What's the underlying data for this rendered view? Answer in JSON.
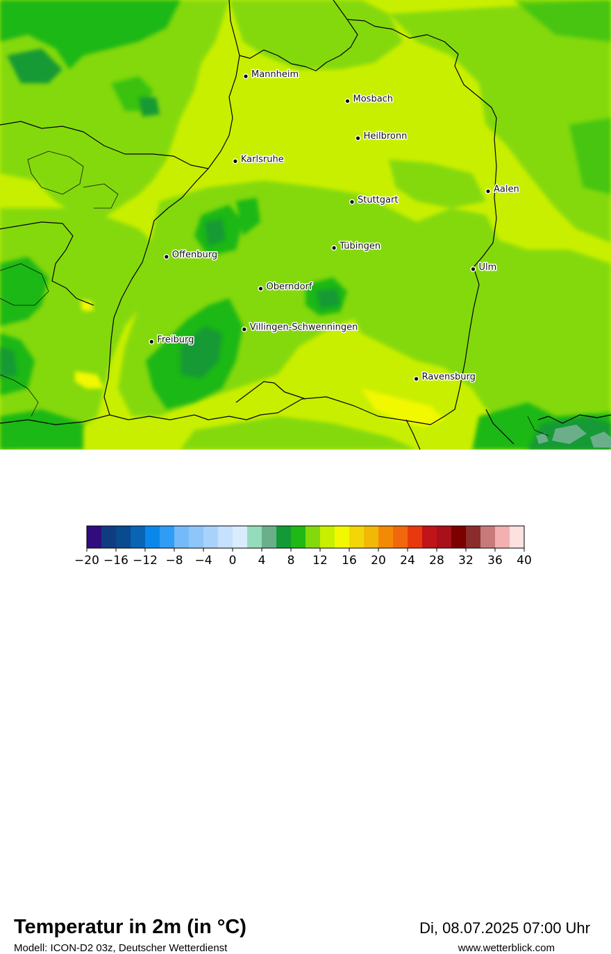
{
  "map": {
    "cities": [
      {
        "name": "Mannheim",
        "lon": 8.47,
        "lat": 49.49
      },
      {
        "name": "Mosbach",
        "lon": 9.15,
        "lat": 49.35
      },
      {
        "name": "Heilbronn",
        "lon": 9.22,
        "lat": 49.14
      },
      {
        "name": "Karlsruhe",
        "lon": 8.4,
        "lat": 49.01
      },
      {
        "name": "Aalen",
        "lon": 10.09,
        "lat": 48.84
      },
      {
        "name": "Stuttgart",
        "lon": 9.18,
        "lat": 48.78
      },
      {
        "name": "Tübingen",
        "lon": 9.06,
        "lat": 48.52
      },
      {
        "name": "Offenburg",
        "lon": 7.94,
        "lat": 48.47
      },
      {
        "name": "Ulm",
        "lon": 9.99,
        "lat": 48.4
      },
      {
        "name": "Oberndorf",
        "lon": 8.57,
        "lat": 48.29
      },
      {
        "name": "Villingen-Schwenningen",
        "lon": 8.46,
        "lat": 48.06
      },
      {
        "name": "Freiburg",
        "lon": 7.84,
        "lat": 47.99
      },
      {
        "name": "Ravensburg",
        "lon": 9.61,
        "lat": 47.78
      }
    ]
  },
  "header": {
    "title": "Temperatur in 2m (in °C)",
    "subtitle": "Modell: ICON-D2 03z, Deutscher Wetterdienst",
    "datetime": "Di, 08.07.2025 07:00 Uhr",
    "website": "www.wetterblick.com"
  },
  "legend": {
    "min": -20,
    "max": 40,
    "step": 2,
    "tick_labels": [
      "−20",
      "−16",
      "−12",
      "−8",
      "−4",
      "0",
      "4",
      "8",
      "12",
      "16",
      "20",
      "24",
      "28",
      "32",
      "36",
      "40"
    ],
    "colors": [
      "#310c7e",
      "#0f3c80",
      "#0a4a8e",
      "#0a64b4",
      "#0a87ea",
      "#2f9cf6",
      "#74baf8",
      "#8ec6fa",
      "#a9d2fb",
      "#c6e1fd",
      "#d9ecfe",
      "#95dcbc",
      "#6aaf8a",
      "#139a36",
      "#1fb814",
      "#84d90c",
      "#c8ef00",
      "#f2f800",
      "#f2d608",
      "#f2b806",
      "#f28a06",
      "#f2670c",
      "#e8380e",
      "#c01418",
      "#a8101a",
      "#7d0000",
      "#8b2d2d",
      "#c87a7a",
      "#f2b0b0",
      "#fde0e0"
    ]
  }
}
